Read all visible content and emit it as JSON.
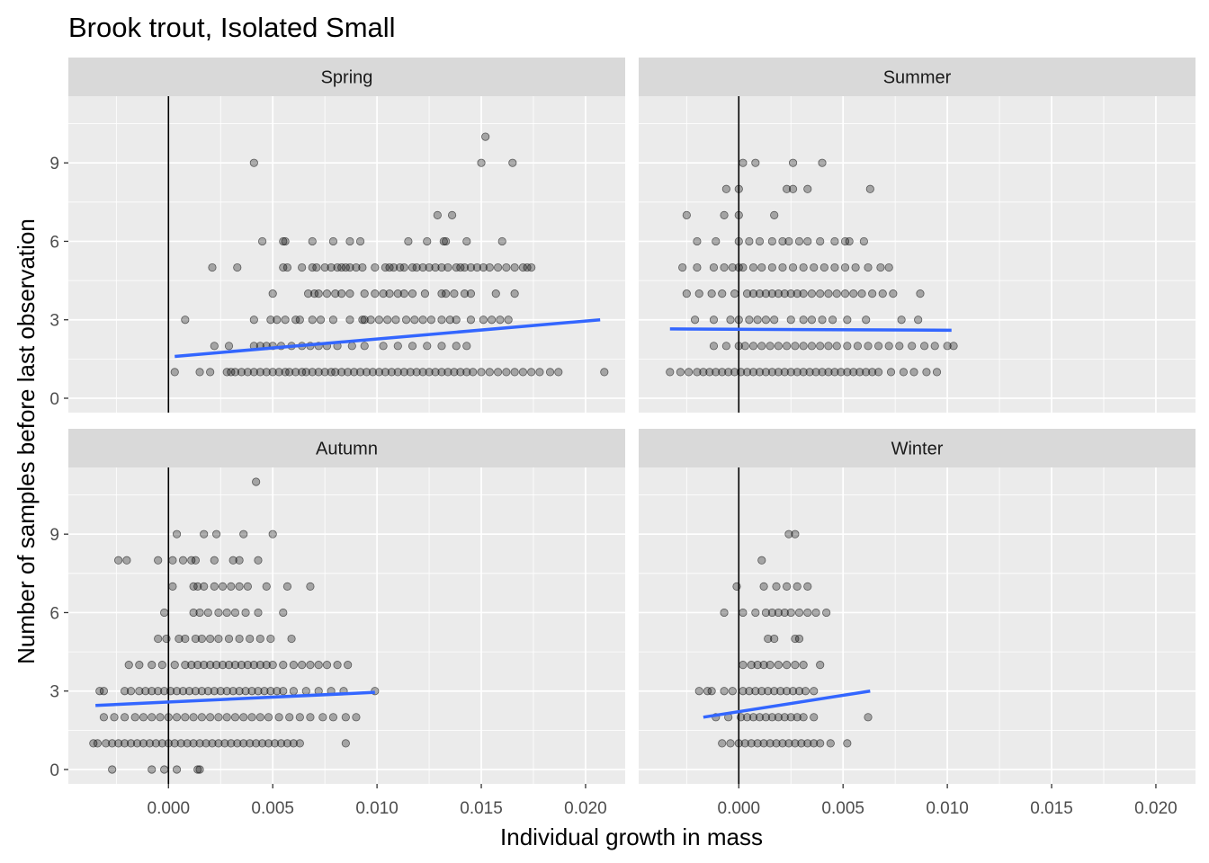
{
  "chart_data": {
    "type": "scatter",
    "title": "Brook trout, Isolated Small",
    "xlabel": "Individual growth in mass",
    "ylabel": "Number of samples before last observation",
    "xlim": [
      -0.0048,
      0.0219
    ],
    "ylim": [
      -0.55,
      11.55
    ],
    "x_ticks": [
      0.0,
      0.005,
      0.01,
      0.015,
      0.02
    ],
    "x_tick_labels": [
      "0.000",
      "0.005",
      "0.010",
      "0.015",
      "0.020"
    ],
    "y_ticks": [
      0,
      3,
      6,
      9
    ],
    "y_tick_labels": [
      "0",
      "3",
      "6",
      "9"
    ],
    "vline_x": 0,
    "point_color": "#000000",
    "point_alpha": 0.3,
    "trend_color": "#3366FF",
    "panel_background": "#EBEBEB",
    "strip_background": "#D9D9D9",
    "grid": true,
    "panels": [
      {
        "name": "Spring",
        "trend": [
          [
            0.0003,
            1.6
          ],
          [
            0.0207,
            3.0
          ]
        ],
        "points": [
          {
            "y": 10,
            "x": [
              0.0152
            ]
          },
          {
            "y": 9,
            "x": [
              0.0041,
              0.015,
              0.0165
            ]
          },
          {
            "y": 7,
            "x": [
              0.0129,
              0.0136
            ]
          },
          {
            "y": 6,
            "x": [
              0.0045,
              0.0055,
              0.0056,
              0.0069,
              0.0079,
              0.0087,
              0.0092,
              0.0115,
              0.0124,
              0.0132,
              0.0133,
              0.0143,
              0.016
            ]
          },
          {
            "y": 5,
            "x": [
              0.0021,
              0.0033,
              0.0055,
              0.0057,
              0.0064,
              0.0069,
              0.0071,
              0.0075,
              0.0078,
              0.0081,
              0.0083,
              0.0085,
              0.0087,
              0.009,
              0.0093,
              0.0099,
              0.0104,
              0.0106,
              0.0108,
              0.0111,
              0.0113,
              0.0117,
              0.0119,
              0.0122,
              0.0125,
              0.0128,
              0.0131,
              0.0134,
              0.0138,
              0.014,
              0.0142,
              0.0145,
              0.0148,
              0.0151,
              0.0154,
              0.0158,
              0.0162,
              0.0166,
              0.017,
              0.0172,
              0.0174
            ]
          },
          {
            "y": 4,
            "x": [
              0.005,
              0.0067,
              0.007,
              0.0072,
              0.0076,
              0.008,
              0.0083,
              0.0087,
              0.0094,
              0.0099,
              0.0103,
              0.0106,
              0.011,
              0.0113,
              0.0117,
              0.0123,
              0.0131,
              0.0133,
              0.0137,
              0.0142,
              0.0145,
              0.0157,
              0.0166
            ]
          },
          {
            "y": 3,
            "x": [
              0.0008,
              0.0041,
              0.0049,
              0.0052,
              0.0056,
              0.0061,
              0.0063,
              0.0069,
              0.0073,
              0.0079,
              0.0087,
              0.0093,
              0.0094,
              0.0097,
              0.0101,
              0.0105,
              0.0109,
              0.0114,
              0.0118,
              0.0122,
              0.0126,
              0.0131,
              0.0135,
              0.0138,
              0.0145,
              0.0151,
              0.0155,
              0.0159,
              0.0163
            ]
          },
          {
            "y": 2,
            "x": [
              0.0022,
              0.0029,
              0.0041,
              0.0044,
              0.0047,
              0.005,
              0.0054,
              0.0059,
              0.0064,
              0.0068,
              0.0072,
              0.0076,
              0.0081,
              0.0088,
              0.0094,
              0.0103,
              0.011,
              0.0117,
              0.0124,
              0.0131,
              0.0138,
              0.0143
            ]
          },
          {
            "y": 1,
            "x": [
              0.0003,
              0.0015,
              0.002,
              0.0028,
              0.003,
              0.0032,
              0.0035,
              0.0038,
              0.0041,
              0.0044,
              0.0047,
              0.005,
              0.0053,
              0.0056,
              0.0058,
              0.0061,
              0.0064,
              0.0066,
              0.0069,
              0.0072,
              0.0075,
              0.0078,
              0.008,
              0.0083,
              0.0086,
              0.0089,
              0.0092,
              0.0095,
              0.0098,
              0.0101,
              0.0104,
              0.0107,
              0.011,
              0.0113,
              0.0116,
              0.0119,
              0.0122,
              0.0125,
              0.0128,
              0.0131,
              0.0134,
              0.0137,
              0.014,
              0.0143,
              0.0146,
              0.015,
              0.0154,
              0.0158,
              0.0162,
              0.0166,
              0.017,
              0.0174,
              0.0178,
              0.0183,
              0.0187,
              0.0209
            ]
          }
        ]
      },
      {
        "name": "Summer",
        "trend": [
          [
            -0.0033,
            2.65
          ],
          [
            0.0102,
            2.6
          ]
        ],
        "points": [
          {
            "y": 9,
            "x": [
              0.0002,
              0.0008,
              0.0026,
              0.004
            ]
          },
          {
            "y": 8,
            "x": [
              -0.0006,
              0.0,
              0.0023,
              0.0026,
              0.0033,
              0.0063
            ]
          },
          {
            "y": 7,
            "x": [
              -0.0025,
              -0.0007,
              0.0,
              0.0017
            ]
          },
          {
            "y": 6,
            "x": [
              -0.002,
              -0.0011,
              0.0,
              0.0005,
              0.001,
              0.0016,
              0.0021,
              0.0024,
              0.0029,
              0.0033,
              0.0039,
              0.0046,
              0.0051,
              0.0053,
              0.006
            ]
          },
          {
            "y": 5,
            "x": [
              -0.0027,
              -0.002,
              -0.0012,
              -0.0007,
              -0.0003,
              0.0,
              0.0002,
              0.0007,
              0.0011,
              0.0016,
              0.0021,
              0.0026,
              0.0031,
              0.0036,
              0.0041,
              0.0046,
              0.0051,
              0.0056,
              0.0062,
              0.0068,
              0.0072
            ]
          },
          {
            "y": 4,
            "x": [
              -0.0025,
              -0.0019,
              -0.0013,
              -0.0008,
              -0.0002,
              0.0004,
              0.0007,
              0.001,
              0.0013,
              0.0016,
              0.0019,
              0.0022,
              0.0025,
              0.0028,
              0.0031,
              0.0035,
              0.0039,
              0.0043,
              0.0047,
              0.0051,
              0.0055,
              0.0059,
              0.0064,
              0.0069,
              0.0074,
              0.0087
            ]
          },
          {
            "y": 3,
            "x": [
              -0.0021,
              -0.0012,
              -0.0004,
              0.0,
              0.0005,
              0.0009,
              0.0013,
              0.0017,
              0.0025,
              0.0031,
              0.0035,
              0.004,
              0.0045,
              0.0052,
              0.0061,
              0.0078,
              0.0086
            ]
          },
          {
            "y": 2,
            "x": [
              -0.0012,
              -0.0006,
              0.0,
              0.0003,
              0.0007,
              0.0011,
              0.0015,
              0.0019,
              0.0023,
              0.0027,
              0.0031,
              0.0035,
              0.0039,
              0.0043,
              0.0047,
              0.0052,
              0.0057,
              0.0062,
              0.0067,
              0.0072,
              0.0077,
              0.0083,
              0.0089,
              0.0094,
              0.01,
              0.0103
            ]
          },
          {
            "y": 1,
            "x": [
              -0.0033,
              -0.0028,
              -0.0024,
              -0.002,
              -0.0017,
              -0.0014,
              -0.0011,
              -0.0008,
              -0.0005,
              -0.0002,
              0.0001,
              0.0004,
              0.0007,
              0.001,
              0.0013,
              0.0016,
              0.0019,
              0.0022,
              0.0025,
              0.0028,
              0.0031,
              0.0034,
              0.0037,
              0.004,
              0.0043,
              0.0046,
              0.0049,
              0.0052,
              0.0055,
              0.0058,
              0.0061,
              0.0064,
              0.0067,
              0.0073,
              0.0079,
              0.0084,
              0.009,
              0.0095
            ]
          }
        ]
      },
      {
        "name": "Autumn",
        "trend": [
          [
            -0.0035,
            2.45
          ],
          [
            0.0099,
            2.95
          ]
        ],
        "points": [
          {
            "y": 11,
            "x": [
              0.0042
            ]
          },
          {
            "y": 9,
            "x": [
              0.0004,
              0.0017,
              0.0023,
              0.0036,
              0.005
            ]
          },
          {
            "y": 8,
            "x": [
              -0.0024,
              -0.002,
              -0.0005,
              0.0002,
              0.0007,
              0.0011,
              0.0013,
              0.0022,
              0.0031,
              0.0034,
              0.0043
            ]
          },
          {
            "y": 7,
            "x": [
              0.0002,
              0.0012,
              0.0014,
              0.0017,
              0.0022,
              0.0026,
              0.003,
              0.0034,
              0.0038,
              0.0047,
              0.0057,
              0.0068
            ]
          },
          {
            "y": 6,
            "x": [
              -0.0002,
              0.0012,
              0.0015,
              0.0019,
              0.0024,
              0.0028,
              0.0032,
              0.0037,
              0.0043,
              0.0055
            ]
          },
          {
            "y": 5,
            "x": [
              -0.0005,
              -0.0001,
              0.0005,
              0.0008,
              0.0013,
              0.0016,
              0.002,
              0.0024,
              0.0029,
              0.0034,
              0.0039,
              0.0044,
              0.0049,
              0.0059
            ]
          },
          {
            "y": 4,
            "x": [
              -0.0019,
              -0.0014,
              -0.0008,
              -0.0003,
              0.0003,
              0.0008,
              0.0011,
              0.0014,
              0.0017,
              0.002,
              0.0023,
              0.0026,
              0.0029,
              0.0032,
              0.0035,
              0.0038,
              0.0041,
              0.0044,
              0.0047,
              0.005,
              0.0055,
              0.006,
              0.0064,
              0.0068,
              0.0072,
              0.0076,
              0.0081,
              0.0086
            ]
          },
          {
            "y": 3,
            "x": [
              -0.0033,
              -0.0031,
              -0.0021,
              -0.0018,
              -0.0014,
              -0.0011,
              -0.0008,
              -0.0005,
              -0.0002,
              0.0001,
              0.0004,
              0.0007,
              0.001,
              0.0013,
              0.0016,
              0.0019,
              0.0022,
              0.0025,
              0.0028,
              0.0031,
              0.0034,
              0.0037,
              0.004,
              0.0043,
              0.0046,
              0.0049,
              0.0052,
              0.0055,
              0.006,
              0.0066,
              0.0072,
              0.0078,
              0.0084,
              0.0099
            ]
          },
          {
            "y": 2,
            "x": [
              -0.0031,
              -0.0026,
              -0.0021,
              -0.0016,
              -0.0012,
              -0.0008,
              -0.0004,
              0.0,
              0.0004,
              0.0008,
              0.0012,
              0.0016,
              0.002,
              0.0024,
              0.0028,
              0.0032,
              0.0036,
              0.004,
              0.0044,
              0.0048,
              0.0053,
              0.0058,
              0.0063,
              0.0068,
              0.0074,
              0.0079,
              0.0085,
              0.009
            ]
          },
          {
            "y": 1,
            "x": [
              -0.0036,
              -0.0034,
              -0.003,
              -0.0027,
              -0.0024,
              -0.0021,
              -0.0018,
              -0.0015,
              -0.0012,
              -0.0009,
              -0.0006,
              -0.0003,
              0.0,
              0.0003,
              0.0006,
              0.0009,
              0.0012,
              0.0015,
              0.0018,
              0.0021,
              0.0024,
              0.0027,
              0.003,
              0.0033,
              0.0036,
              0.0039,
              0.0042,
              0.0045,
              0.0048,
              0.0051,
              0.0054,
              0.0057,
              0.006,
              0.0063,
              0.0085
            ]
          },
          {
            "y": 0,
            "x": [
              -0.0027,
              -0.0008,
              -0.0002,
              0.0004,
              0.0014,
              0.0015
            ]
          }
        ]
      },
      {
        "name": "Winter",
        "trend": [
          [
            -0.0017,
            2.0
          ],
          [
            0.0063,
            3.0
          ]
        ],
        "points": [
          {
            "y": 9,
            "x": [
              0.0024,
              0.0027
            ]
          },
          {
            "y": 8,
            "x": [
              0.0011
            ]
          },
          {
            "y": 7,
            "x": [
              -0.0001,
              0.0012,
              0.0018,
              0.0023,
              0.0028,
              0.0033
            ]
          },
          {
            "y": 6,
            "x": [
              -0.0007,
              0.0002,
              0.0008,
              0.0013,
              0.0016,
              0.0019,
              0.0022,
              0.0025,
              0.0029,
              0.0033,
              0.0037,
              0.0042
            ]
          },
          {
            "y": 5,
            "x": [
              0.0014,
              0.0017,
              0.0027,
              0.0029
            ]
          },
          {
            "y": 4,
            "x": [
              0.0002,
              0.0006,
              0.0009,
              0.0012,
              0.0015,
              0.0019,
              0.0023,
              0.0027,
              0.0031,
              0.0039
            ]
          },
          {
            "y": 3,
            "x": [
              -0.0019,
              -0.0015,
              -0.0013,
              -0.0007,
              -0.0003,
              0.0002,
              0.0005,
              0.0008,
              0.0011,
              0.0014,
              0.0017,
              0.002,
              0.0023,
              0.0026,
              0.0029,
              0.0032,
              0.0036
            ]
          },
          {
            "y": 2,
            "x": [
              -0.0011,
              -0.0005,
              0.0001,
              0.0004,
              0.0007,
              0.001,
              0.0013,
              0.0016,
              0.0019,
              0.0022,
              0.0025,
              0.0028,
              0.0031,
              0.0036,
              0.0062
            ]
          },
          {
            "y": 1,
            "x": [
              -0.0008,
              -0.0004,
              0.0,
              0.0003,
              0.0006,
              0.0009,
              0.0012,
              0.0015,
              0.0018,
              0.0021,
              0.0024,
              0.0027,
              0.003,
              0.0033,
              0.0036,
              0.0039,
              0.0044,
              0.0052
            ]
          }
        ]
      }
    ]
  }
}
